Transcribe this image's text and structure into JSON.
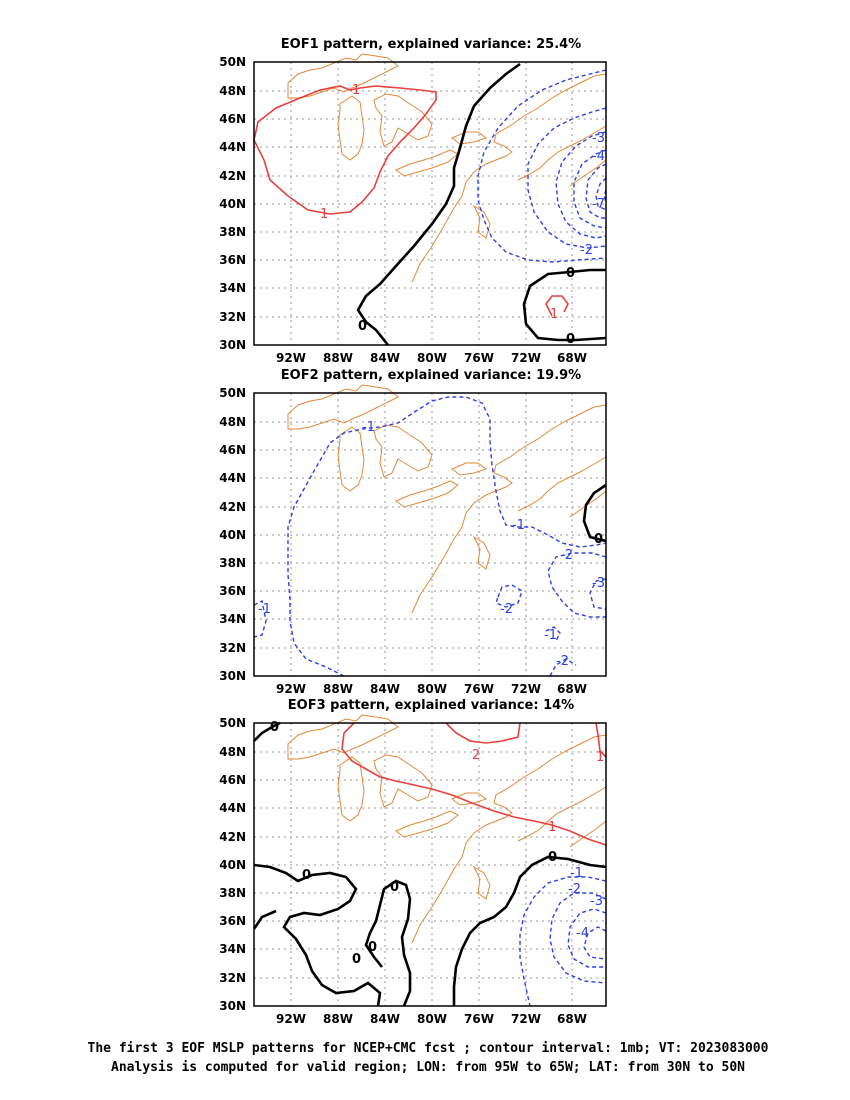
{
  "panels": [
    {
      "title": "EOF1 pattern, explained variance: 25.4%"
    },
    {
      "title": "EOF2 pattern, explained variance: 19.9%"
    },
    {
      "title": "EOF3 pattern, explained variance: 14%"
    }
  ],
  "axes": {
    "lat_labels": [
      "50N",
      "48N",
      "46N",
      "44N",
      "42N",
      "40N",
      "38N",
      "36N",
      "34N",
      "32N",
      "30N"
    ],
    "lon_labels": [
      "92W",
      "88W",
      "84W",
      "80W",
      "76W",
      "72W",
      "68W"
    ]
  },
  "contour_labels": {
    "eof1": [
      "1",
      "1",
      "-3",
      "-4",
      "-7",
      "-2",
      "0",
      "1",
      "0",
      "0"
    ],
    "eof2": [
      "-1",
      "-1",
      "-2",
      "-3",
      "-2",
      "-1",
      "-2",
      "0",
      "-1"
    ],
    "eof3": [
      "0",
      "2",
      "1",
      "1",
      "0",
      "-1",
      "-2",
      "-3",
      "-4",
      "0",
      "0",
      "0",
      "0"
    ]
  },
  "colors": {
    "positive": "#e8413d",
    "negative": "#2a42e8",
    "zero": "#000000",
    "coastline": "#e4893a"
  },
  "caption": {
    "line1": "The first 3 EOF MSLP patterns for NCEP+CMC fcst ; contour interval: 1mb; VT: 2023083000",
    "line2": "Analysis is computed for valid region; LON: from 95W to 65W; LAT: from 30N to 50N"
  }
}
